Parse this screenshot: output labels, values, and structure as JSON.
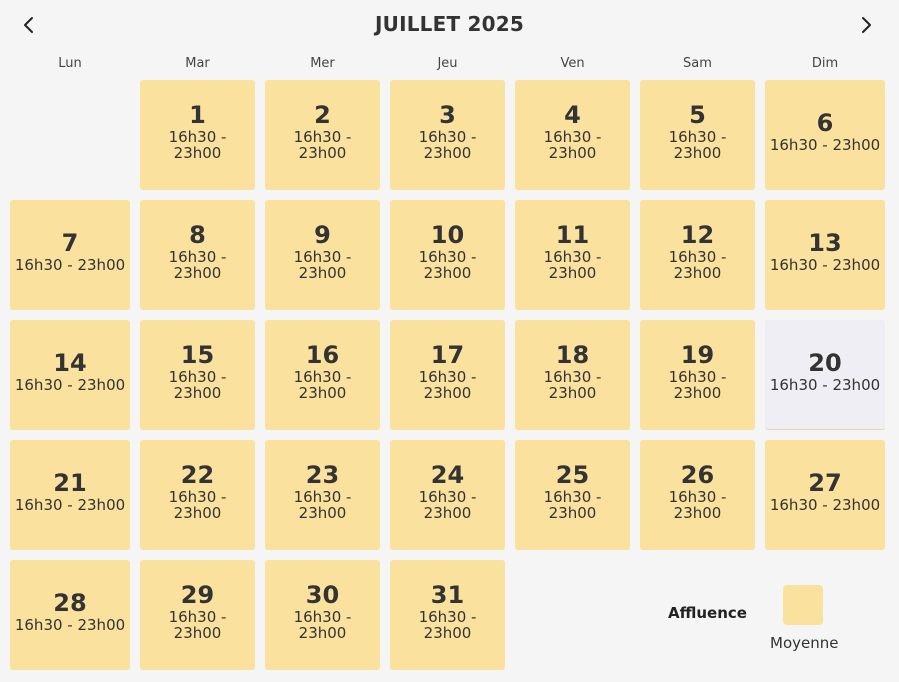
{
  "header": {
    "title": "JUILLET 2025",
    "prev_icon": "chevron-left-icon",
    "next_icon": "chevron-right-icon"
  },
  "weekdays": [
    "Lun",
    "Mar",
    "Mer",
    "Jeu",
    "Ven",
    "Sam",
    "Dim"
  ],
  "days": [
    {
      "day": "1",
      "hours": "16h30 - 23h00",
      "weekday": 1
    },
    {
      "day": "2",
      "hours": "16h30 - 23h00",
      "weekday": 2
    },
    {
      "day": "3",
      "hours": "16h30 - 23h00",
      "weekday": 3
    },
    {
      "day": "4",
      "hours": "16h30 - 23h00",
      "weekday": 4
    },
    {
      "day": "5",
      "hours": "16h30 - 23h00",
      "weekday": 5
    },
    {
      "day": "6",
      "hours": "16h30 - 23h00",
      "weekday": 6
    },
    {
      "day": "7",
      "hours": "16h30 - 23h00",
      "weekday": 0
    },
    {
      "day": "8",
      "hours": "16h30 - 23h00",
      "weekday": 1
    },
    {
      "day": "9",
      "hours": "16h30 - 23h00",
      "weekday": 2
    },
    {
      "day": "10",
      "hours": "16h30 - 23h00",
      "weekday": 3
    },
    {
      "day": "11",
      "hours": "16h30 - 23h00",
      "weekday": 4
    },
    {
      "day": "12",
      "hours": "16h30 - 23h00",
      "weekday": 5
    },
    {
      "day": "13",
      "hours": "16h30 - 23h00",
      "weekday": 6
    },
    {
      "day": "14",
      "hours": "16h30 - 23h00",
      "weekday": 0
    },
    {
      "day": "15",
      "hours": "16h30 - 23h00",
      "weekday": 1
    },
    {
      "day": "16",
      "hours": "16h30 - 23h00",
      "weekday": 2
    },
    {
      "day": "17",
      "hours": "16h30 - 23h00",
      "weekday": 3
    },
    {
      "day": "18",
      "hours": "16h30 - 23h00",
      "weekday": 4
    },
    {
      "day": "19",
      "hours": "16h30 - 23h00",
      "weekday": 5
    },
    {
      "day": "20",
      "hours": "16h30 - 23h00",
      "weekday": 6,
      "highlighted": true
    },
    {
      "day": "21",
      "hours": "16h30 - 23h00",
      "weekday": 0
    },
    {
      "day": "22",
      "hours": "16h30 - 23h00",
      "weekday": 1
    },
    {
      "day": "23",
      "hours": "16h30 - 23h00",
      "weekday": 2
    },
    {
      "day": "24",
      "hours": "16h30 - 23h00",
      "weekday": 3
    },
    {
      "day": "25",
      "hours": "16h30 - 23h00",
      "weekday": 4
    },
    {
      "day": "26",
      "hours": "16h30 - 23h00",
      "weekday": 5
    },
    {
      "day": "27",
      "hours": "16h30 - 23h00",
      "weekday": 6
    },
    {
      "day": "28",
      "hours": "16h30 - 23h00",
      "weekday": 0
    },
    {
      "day": "29",
      "hours": "16h30 - 23h00",
      "weekday": 1
    },
    {
      "day": "30",
      "hours": "16h30 - 23h00",
      "weekday": 2
    },
    {
      "day": "31",
      "hours": "16h30 - 23h00",
      "weekday": 3
    }
  ],
  "legend": {
    "title": "Affluence",
    "label": "Moyenne",
    "color": "#fbe19e"
  },
  "colors": {
    "day_bg": "#fbe19e",
    "highlight_bg": "#efeef4",
    "page_bg": "#f5f5f5"
  }
}
